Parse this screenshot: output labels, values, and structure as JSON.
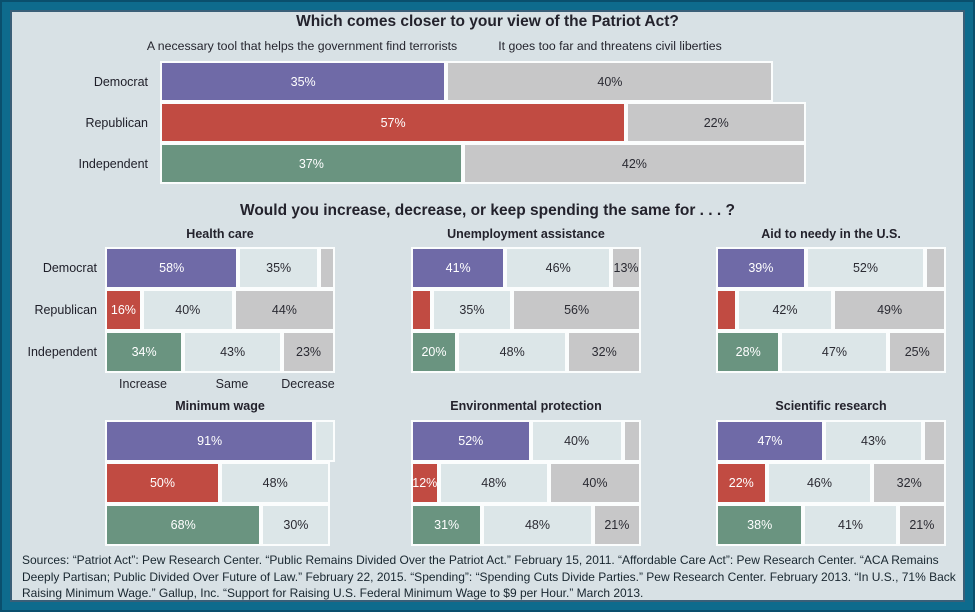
{
  "spending_title": "Would you increase, decrease, or keep spending the same for . . . ?",
  "sources": "Sources: “Patriot Act”: Pew Research Center. “Public Remains Divided Over the Patriot Act.” February 15, 2011. “Affordable Care Act”: Pew Research Center. “ACA Remains Deeply Partisan; Public Divided Over Future of Law.” February 22, 2015. “Spending”: “Spending Cuts Divide Parties.” Pew Research Center. February 2013. “In U.S., 71% Back Raising Minimum Wage.” Gallup, Inc. “Support for Raising U.S. Federal Minimum Wage to $9 per Hour.” March 2013.",
  "colors": {
    "frame_teal": "#0E6B8D",
    "background": "#D8E1E5",
    "democrat": "#6F6AA7",
    "republican": "#C14B42",
    "independent": "#6A9480",
    "gray": "#C7C7C8",
    "light": "#DCE6E8",
    "separator": "#FBFDFD",
    "label_light": "#FFFFFF",
    "label_dark": "#2B2B33"
  },
  "chart_data": [
    {
      "id": "patriot",
      "type": "bar",
      "stacked": true,
      "orientation": "horizontal",
      "title": "Which comes closer to your view of the Patriot Act?",
      "column_headers": [
        "A necessary tool that helps the government find terrorists",
        "It goes too far and threatens civil liberties"
      ],
      "categories": [
        "Democrat",
        "Republican",
        "Independent"
      ],
      "rows": [
        {
          "category": "Democrat",
          "segments": [
            {
              "value": 35,
              "label": "35%",
              "fill": "democrat"
            },
            {
              "value": 40,
              "label": "40%",
              "fill": "gray"
            }
          ]
        },
        {
          "category": "Republican",
          "segments": [
            {
              "value": 57,
              "label": "57%",
              "fill": "republican"
            },
            {
              "value": 22,
              "label": "22%",
              "fill": "gray"
            }
          ]
        },
        {
          "category": "Independent",
          "segments": [
            {
              "value": 37,
              "label": "37%",
              "fill": "independent"
            },
            {
              "value": 42,
              "label": "42%",
              "fill": "gray"
            }
          ]
        }
      ]
    },
    {
      "id": "health-care",
      "type": "bar",
      "stacked": true,
      "orientation": "horizontal",
      "title": "Health care",
      "categories": [
        "Democrat",
        "Republican",
        "Independent"
      ],
      "axis_labels": [
        "Increase",
        "Same",
        "Decrease"
      ],
      "rows": [
        {
          "category": "Democrat",
          "segments": [
            {
              "value": 58,
              "label": "58%",
              "fill": "democrat"
            },
            {
              "value": 35,
              "label": "35%",
              "fill": "light"
            },
            {
              "value": 7,
              "label": "",
              "fill": "gray"
            }
          ]
        },
        {
          "category": "Republican",
          "segments": [
            {
              "value": 16,
              "label": "16%",
              "fill": "republican"
            },
            {
              "value": 40,
              "label": "40%",
              "fill": "light"
            },
            {
              "value": 44,
              "label": "44%",
              "fill": "gray"
            }
          ]
        },
        {
          "category": "Independent",
          "segments": [
            {
              "value": 34,
              "label": "34%",
              "fill": "independent"
            },
            {
              "value": 43,
              "label": "43%",
              "fill": "light"
            },
            {
              "value": 23,
              "label": "23%",
              "fill": "gray"
            }
          ]
        }
      ]
    },
    {
      "id": "unemployment",
      "type": "bar",
      "stacked": true,
      "orientation": "horizontal",
      "title": "Unemployment assistance",
      "categories": [
        "Democrat",
        "Republican",
        "Independent"
      ],
      "rows": [
        {
          "category": "Democrat",
          "segments": [
            {
              "value": 41,
              "label": "41%",
              "fill": "democrat"
            },
            {
              "value": 46,
              "label": "46%",
              "fill": "light"
            },
            {
              "value": 13,
              "label": "13%",
              "fill": "gray"
            }
          ]
        },
        {
          "category": "Republican",
          "segments": [
            {
              "value": 9,
              "label": "",
              "fill": "republican"
            },
            {
              "value": 35,
              "label": "35%",
              "fill": "light"
            },
            {
              "value": 56,
              "label": "56%",
              "fill": "gray"
            }
          ]
        },
        {
          "category": "Independent",
          "segments": [
            {
              "value": 20,
              "label": "20%",
              "fill": "independent"
            },
            {
              "value": 48,
              "label": "48%",
              "fill": "light"
            },
            {
              "value": 32,
              "label": "32%",
              "fill": "gray"
            }
          ]
        }
      ]
    },
    {
      "id": "aid-needy",
      "type": "bar",
      "stacked": true,
      "orientation": "horizontal",
      "title": "Aid to needy in the U.S.",
      "categories": [
        "Democrat",
        "Republican",
        "Independent"
      ],
      "rows": [
        {
          "category": "Democrat",
          "segments": [
            {
              "value": 39,
              "label": "39%",
              "fill": "democrat"
            },
            {
              "value": 52,
              "label": "52%",
              "fill": "light"
            },
            {
              "value": 9,
              "label": "",
              "fill": "gray"
            }
          ]
        },
        {
          "category": "Republican",
          "segments": [
            {
              "value": 9,
              "label": "",
              "fill": "republican"
            },
            {
              "value": 42,
              "label": "42%",
              "fill": "light"
            },
            {
              "value": 49,
              "label": "49%",
              "fill": "gray"
            }
          ]
        },
        {
          "category": "Independent",
          "segments": [
            {
              "value": 28,
              "label": "28%",
              "fill": "independent"
            },
            {
              "value": 47,
              "label": "47%",
              "fill": "light"
            },
            {
              "value": 25,
              "label": "25%",
              "fill": "gray"
            }
          ]
        }
      ]
    },
    {
      "id": "minimum-wage",
      "type": "bar",
      "stacked": true,
      "orientation": "horizontal",
      "title": "Minimum wage",
      "categories": [
        "Democrat",
        "Republican",
        "Independent"
      ],
      "rows": [
        {
          "category": "Democrat",
          "segments": [
            {
              "value": 91,
              "label": "91%",
              "fill": "democrat"
            },
            {
              "value": 9,
              "label": "",
              "fill": "light"
            }
          ]
        },
        {
          "category": "Republican",
          "segments": [
            {
              "value": 50,
              "label": "50%",
              "fill": "republican"
            },
            {
              "value": 48,
              "label": "48%",
              "fill": "light"
            }
          ]
        },
        {
          "category": "Independent",
          "segments": [
            {
              "value": 68,
              "label": "68%",
              "fill": "independent"
            },
            {
              "value": 30,
              "label": "30%",
              "fill": "light"
            }
          ]
        }
      ]
    },
    {
      "id": "environmental",
      "type": "bar",
      "stacked": true,
      "orientation": "horizontal",
      "title": "Environmental protection",
      "categories": [
        "Democrat",
        "Republican",
        "Independent"
      ],
      "rows": [
        {
          "category": "Democrat",
          "segments": [
            {
              "value": 52,
              "label": "52%",
              "fill": "democrat"
            },
            {
              "value": 40,
              "label": "40%",
              "fill": "light"
            },
            {
              "value": 8,
              "label": "",
              "fill": "gray"
            }
          ]
        },
        {
          "category": "Republican",
          "segments": [
            {
              "value": 12,
              "label": "12%",
              "fill": "republican"
            },
            {
              "value": 48,
              "label": "48%",
              "fill": "light"
            },
            {
              "value": 40,
              "label": "40%",
              "fill": "gray"
            }
          ]
        },
        {
          "category": "Independent",
          "segments": [
            {
              "value": 31,
              "label": "31%",
              "fill": "independent"
            },
            {
              "value": 48,
              "label": "48%",
              "fill": "light"
            },
            {
              "value": 21,
              "label": "21%",
              "fill": "gray"
            }
          ]
        }
      ]
    },
    {
      "id": "scientific",
      "type": "bar",
      "stacked": true,
      "orientation": "horizontal",
      "title": "Scientific research",
      "categories": [
        "Democrat",
        "Republican",
        "Independent"
      ],
      "rows": [
        {
          "category": "Democrat",
          "segments": [
            {
              "value": 47,
              "label": "47%",
              "fill": "democrat"
            },
            {
              "value": 43,
              "label": "43%",
              "fill": "light"
            },
            {
              "value": 10,
              "label": "",
              "fill": "gray"
            }
          ]
        },
        {
          "category": "Republican",
          "segments": [
            {
              "value": 22,
              "label": "22%",
              "fill": "republican"
            },
            {
              "value": 46,
              "label": "46%",
              "fill": "light"
            },
            {
              "value": 32,
              "label": "32%",
              "fill": "gray"
            }
          ]
        },
        {
          "category": "Independent",
          "segments": [
            {
              "value": 38,
              "label": "38%",
              "fill": "independent"
            },
            {
              "value": 41,
              "label": "41%",
              "fill": "light"
            },
            {
              "value": 21,
              "label": "21%",
              "fill": "gray"
            }
          ]
        }
      ]
    }
  ]
}
